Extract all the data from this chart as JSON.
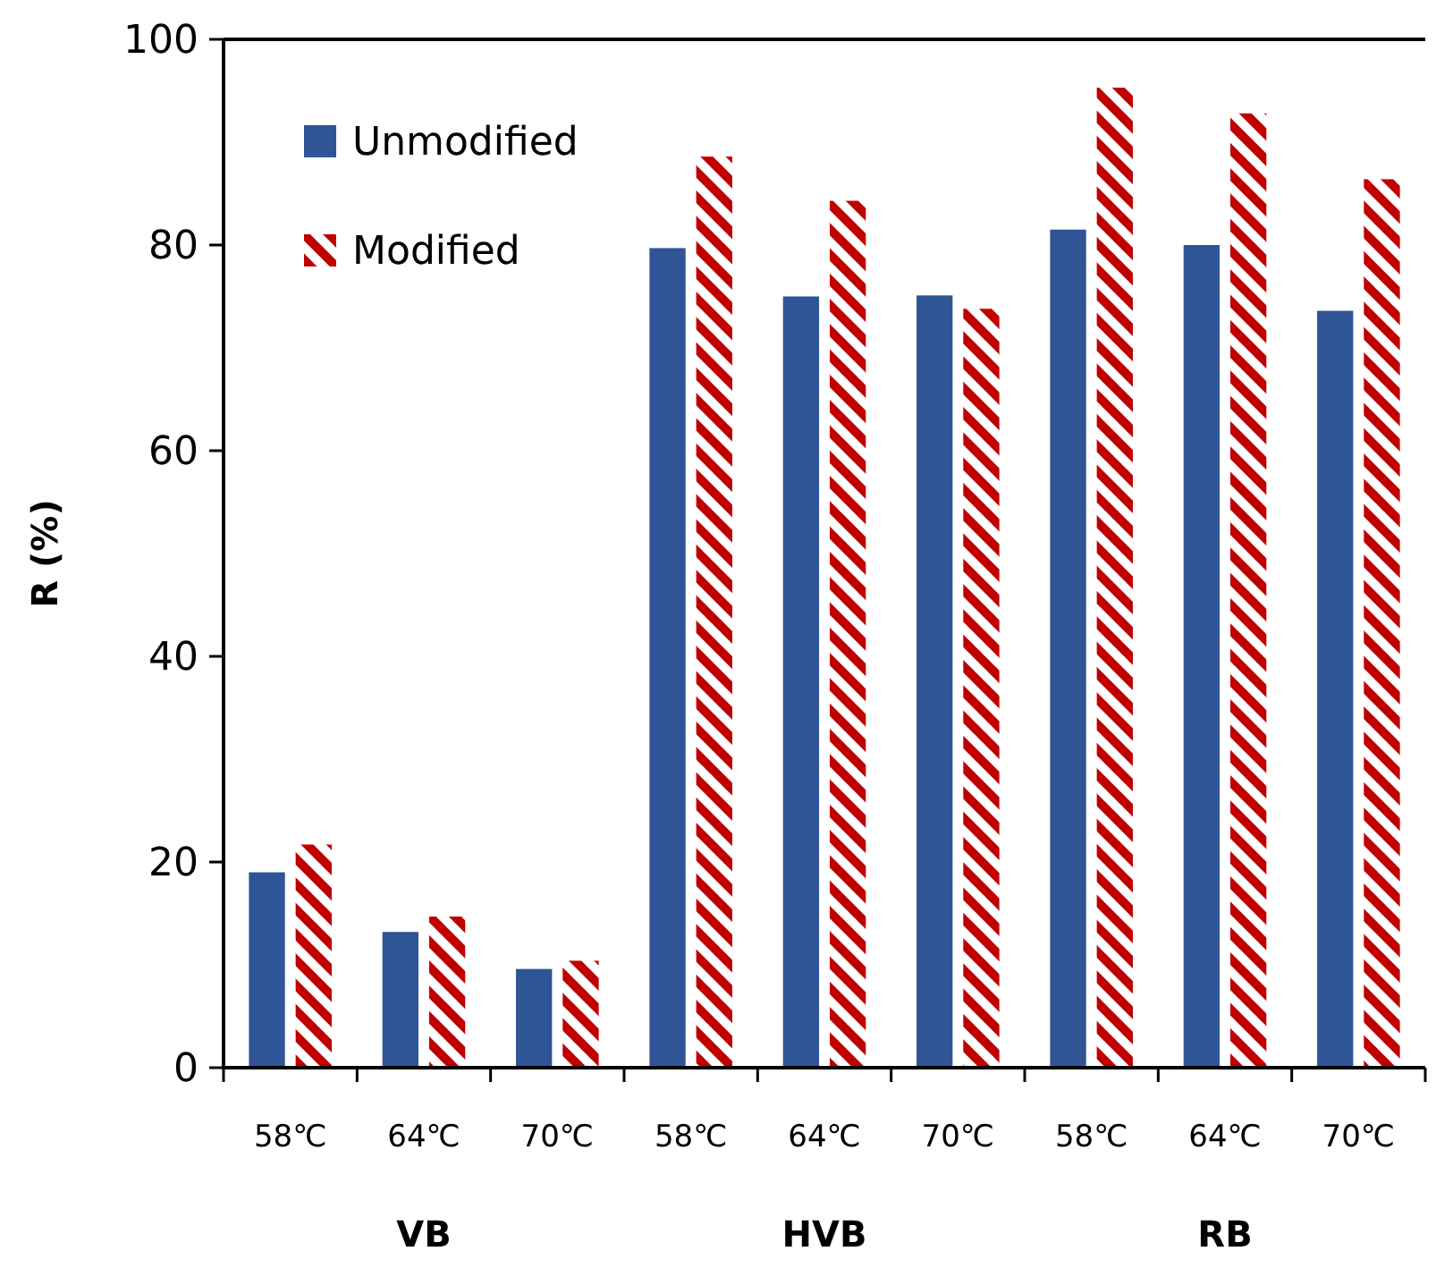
{
  "chart_data": {
    "type": "bar",
    "ylabel": "R (%)",
    "categories": [
      "58℃",
      "64℃",
      "70℃",
      "58℃",
      "64℃",
      "70℃",
      "58℃",
      "64℃",
      "70℃"
    ],
    "series": [
      {
        "name": "Unmodified",
        "color": "#2f5597",
        "values": [
          19.0,
          13.2,
          9.6,
          79.7,
          75.0,
          75.1,
          81.5,
          80.0,
          73.6
        ]
      },
      {
        "name": "Modified",
        "color": "#c00000",
        "values": [
          21.7,
          14.7,
          10.4,
          88.6,
          84.3,
          73.8,
          95.3,
          92.8,
          86.4
        ]
      }
    ],
    "annotations": [
      "VB",
      "HVB",
      "RB"
    ],
    "ylim": [
      0,
      100
    ],
    "yticks": [
      0,
      20,
      40,
      60,
      80,
      100
    ],
    "grid": false,
    "legend": "top left"
  }
}
